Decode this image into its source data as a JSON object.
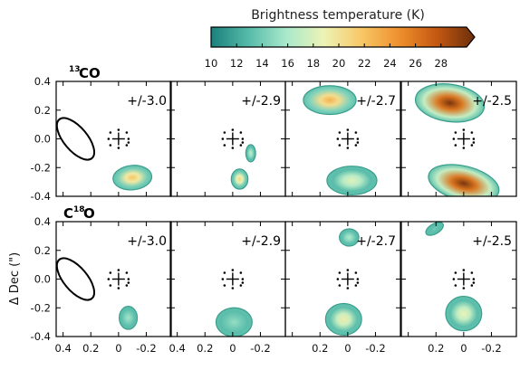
{
  "chart_data": {
    "type": "heatmap",
    "colorbar": {
      "label": "Brightness temperature (K)",
      "ticks": [
        10,
        12,
        14,
        16,
        18,
        20,
        22,
        24,
        26,
        28
      ],
      "range": [
        10,
        30
      ],
      "extend": "max",
      "colors": [
        "#1a807c",
        "#56bba9",
        "#a9e9cc",
        "#edf3b5",
        "#f8c766",
        "#ee8f2c",
        "#c35811",
        "#6b2e0b"
      ]
    },
    "x_axis": {
      "label": "",
      "ticks": [
        0.4,
        0.2,
        0,
        -0.2
      ],
      "tick_labels": [
        "0.4",
        "0.2",
        "0",
        "-0.2"
      ],
      "range": [
        0.45,
        -0.38
      ]
    },
    "y_axis": {
      "label": "Δ Dec (\")",
      "ticks": [
        0.4,
        0.2,
        0.0,
        -0.2,
        -0.4
      ],
      "tick_labels": [
        "0.4",
        "0.2",
        "0.0",
        "-0.2",
        "-0.4"
      ],
      "range": [
        -0.4,
        0.4
      ]
    },
    "rows": [
      {
        "molecule": {
          "super": "13",
          "name": "CO"
        },
        "panels": [
          {
            "velocity": "+/-3.0",
            "beam": true,
            "blobs": [
              {
                "x": -0.1,
                "y": -0.27,
                "rx": 0.14,
                "ry": 0.085,
                "angle": -5,
                "peak": 21.5
              }
            ]
          },
          {
            "velocity": "+/-2.9",
            "beam": false,
            "blobs": [
              {
                "x": -0.05,
                "y": -0.28,
                "rx": 0.06,
                "ry": 0.07,
                "angle": 0,
                "peak": 20.5
              },
              {
                "x": -0.13,
                "y": -0.1,
                "rx": 0.035,
                "ry": 0.06,
                "angle": 0,
                "peak": 16.5
              }
            ]
          },
          {
            "velocity": "+/-2.7",
            "beam": false,
            "blobs": [
              {
                "x": 0.13,
                "y": 0.27,
                "rx": 0.19,
                "ry": 0.1,
                "angle": 0,
                "peak": 22.5
              },
              {
                "x": -0.03,
                "y": -0.29,
                "rx": 0.18,
                "ry": 0.1,
                "angle": 0,
                "peak": 18.0
              }
            ]
          },
          {
            "velocity": "+/-2.5",
            "beam": false,
            "blobs": [
              {
                "x": 0.1,
                "y": 0.25,
                "rx": 0.25,
                "ry": 0.13,
                "angle": 8,
                "peak": 29.5
              },
              {
                "x": 0.0,
                "y": -0.31,
                "rx": 0.26,
                "ry": 0.12,
                "angle": 14,
                "peak": 29.5
              }
            ]
          }
        ]
      },
      {
        "molecule": {
          "super": "18",
          "name": "O",
          "prefix": "C"
        },
        "panels": [
          {
            "velocity": "+/-3.0",
            "beam": true,
            "blobs": [
              {
                "x": -0.07,
                "y": -0.27,
                "rx": 0.065,
                "ry": 0.08,
                "angle": 0,
                "peak": 15.5
              }
            ]
          },
          {
            "velocity": "+/-2.9",
            "beam": false,
            "blobs": [
              {
                "x": -0.01,
                "y": -0.3,
                "rx": 0.13,
                "ry": 0.1,
                "angle": 0,
                "peak": 15.0
              }
            ]
          },
          {
            "velocity": "+/-2.7",
            "beam": false,
            "blobs": [
              {
                "x": -0.01,
                "y": 0.29,
                "rx": 0.07,
                "ry": 0.06,
                "angle": 0,
                "peak": 16.0
              },
              {
                "x": 0.03,
                "y": -0.28,
                "rx": 0.13,
                "ry": 0.11,
                "angle": 0,
                "peak": 19.0
              }
            ]
          },
          {
            "velocity": "+/-2.5",
            "beam": false,
            "blobs": [
              {
                "x": 0.21,
                "y": 0.35,
                "rx": 0.07,
                "ry": 0.035,
                "angle": -30,
                "peak": 14.0
              },
              {
                "x": 0.0,
                "y": -0.24,
                "rx": 0.13,
                "ry": 0.12,
                "angle": 0,
                "peak": 18.5
              }
            ]
          }
        ]
      }
    ]
  }
}
